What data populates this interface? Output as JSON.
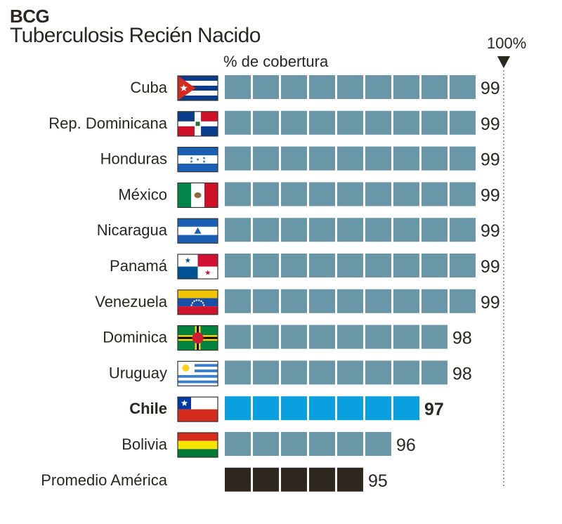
{
  "header": {
    "title": "BCG",
    "subtitle": "Tuberculosis Recién Nacido",
    "column_label": "% de cobertura",
    "reference_label": "100%"
  },
  "colors": {
    "bar_default": "#6a97a7",
    "bar_highlight": "#0a9fdf",
    "bar_average": "#2d2720",
    "text": "#2a2620",
    "reference_line": "#9a9a9a"
  },
  "chart_data": {
    "type": "bar",
    "orientation": "horizontal",
    "title": "BCG",
    "subtitle": "Tuberculosis Recién Nacido",
    "xlabel": "% de cobertura",
    "reference": {
      "value": 100,
      "label": "100%"
    },
    "xlim": [
      90,
      100
    ],
    "grid": false,
    "categories": [
      "Cuba",
      "Rep. Dominicana",
      "Honduras",
      "México",
      "Nicaragua",
      "Panamá",
      "Venezuela",
      "Dominica",
      "Uruguay",
      "Chile",
      "Bolivia",
      "Promedio América"
    ],
    "values": [
      99,
      99,
      99,
      99,
      99,
      99,
      99,
      98,
      98,
      97,
      96,
      95
    ],
    "flags": [
      "cuba-flag-icon",
      "dominican-republic-flag-icon",
      "honduras-flag-icon",
      "mexico-flag-icon",
      "nicaragua-flag-icon",
      "panama-flag-icon",
      "venezuela-flag-icon",
      "dominica-flag-icon",
      "uruguay-flag-icon",
      "chile-flag-icon",
      "bolivia-flag-icon",
      ""
    ],
    "highlight": "Chile",
    "average": "Promedio América"
  }
}
